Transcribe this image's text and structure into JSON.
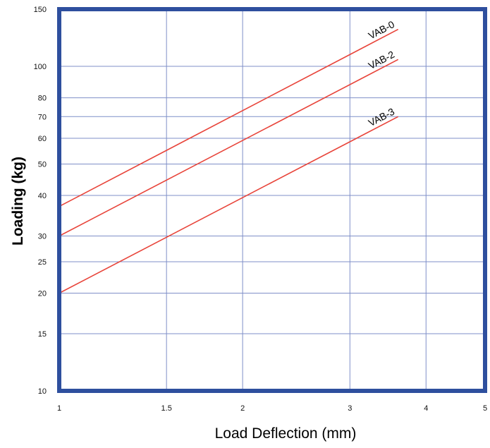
{
  "chart_data": {
    "type": "line",
    "title": "",
    "xlabel": "Load Deflection (mm)",
    "ylabel": "Loading (kg)",
    "x_scale": "log",
    "y_scale": "log",
    "xlim": [
      1,
      5
    ],
    "ylim": [
      10,
      150
    ],
    "x_ticks": [
      1,
      1.5,
      2,
      3,
      4,
      5
    ],
    "x_tick_labels": [
      "1",
      "1.5",
      "2",
      "3",
      "4",
      "5"
    ],
    "y_ticks": [
      10,
      15,
      20,
      25,
      30,
      40,
      50,
      60,
      70,
      80,
      100,
      150
    ],
    "y_tick_labels": [
      "10",
      "15",
      "20",
      "25",
      "30",
      "40",
      "50",
      "60",
      "70",
      "80",
      "100",
      "150"
    ],
    "grid": true,
    "legend": "none",
    "series": [
      {
        "name": "VAB-0",
        "x": [
          1,
          3.6
        ],
        "y": [
          37,
          130
        ]
      },
      {
        "name": "VAB-2",
        "x": [
          1,
          3.6
        ],
        "y": [
          30,
          105
        ]
      },
      {
        "name": "VAB-3",
        "x": [
          1,
          3.6
        ],
        "y": [
          20,
          70
        ]
      }
    ],
    "colors": {
      "frame": "#2e4f9e",
      "grid": "#7f8fc8",
      "series": "#e8443a",
      "text": "#000000"
    }
  }
}
